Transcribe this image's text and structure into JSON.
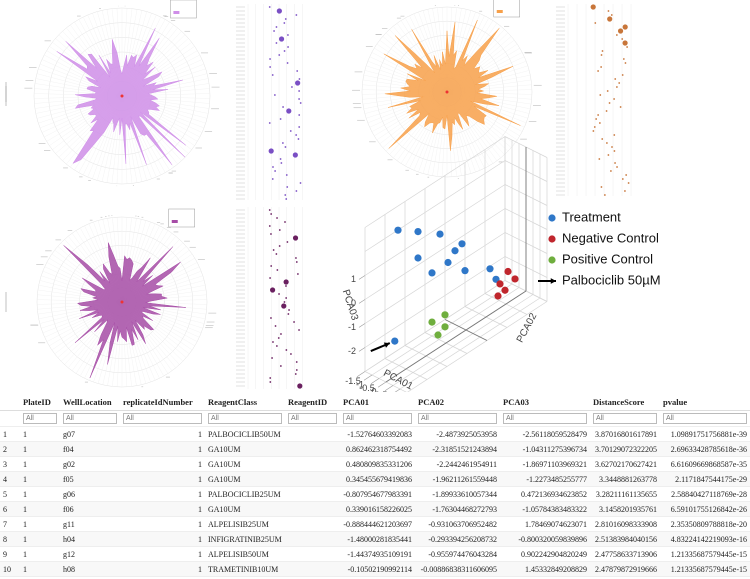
{
  "pca_chart": {
    "type": "scatter3d",
    "axis_labels": {
      "pca01": "PCA01",
      "pca02": "PCA02",
      "pca03": "PCA03"
    },
    "pca01_ticks": [
      -1.5,
      -1,
      -0.5,
      0,
      0.5,
      1,
      1.5
    ],
    "pca03_ticks": [
      -2,
      -1,
      0,
      1
    ],
    "series": [
      {
        "name": "Treatment",
        "color": "#2f77c8",
        "pca01": [
          -1.53,
          0,
          0,
          0,
          0,
          0,
          0,
          0,
          0,
          0,
          0,
          0
        ],
        "pca02": [
          -2.49,
          -3.4,
          -2.4,
          -1.3,
          -0.2,
          -0.55,
          -0.9,
          -2.4,
          -1.7,
          -0.05,
          1.2,
          1.5
        ],
        "pca03": [
          -2.56,
          3.0,
          2.4,
          1.7,
          0.7,
          0.6,
          0.3,
          1.3,
          0.3,
          -0.5,
          -1.1,
          -1.7
        ]
      },
      {
        "name": "Negative Control",
        "color": "#c0262d",
        "pca01": [
          0,
          0,
          0,
          0,
          0
        ],
        "pca02": [
          2.1,
          2.45,
          1.7,
          1.95,
          1.6
        ],
        "pca03": [
          -1.7,
          -2.2,
          -2.0,
          -2.4,
          -2.45
        ]
      },
      {
        "name": "Positive Control",
        "color": "#6fae3e",
        "pca01": [
          0,
          0,
          0,
          0
        ],
        "pca02": [
          -1.05,
          -1.7,
          -1.05,
          -1.4
        ],
        "pca03": [
          -1.8,
          -1.75,
          -2.3,
          -2.45
        ]
      }
    ],
    "annotation": {
      "text": "Palbociclib 50µM"
    }
  },
  "table": {
    "columns": [
      "PlateID",
      "WellLocation",
      "replicateIdNumber",
      "ReagentClass",
      "ReagentID",
      "PCA01",
      "PCA02",
      "PCA03",
      "DistanceScore",
      "pvalue"
    ],
    "filter_placeholder": "All",
    "row_labels": [
      "1",
      "2",
      "3",
      "4",
      "5",
      "6",
      "7",
      "8",
      "9",
      "10"
    ],
    "rows": [
      [
        "1",
        "g07",
        "1",
        "PALBOCICLIB50UM",
        "",
        "-1.52764603392083",
        "-2.4873925053958",
        "-2.56118059528479",
        "3.87016801617891",
        "1.09891751756881e-39"
      ],
      [
        "1",
        "f04",
        "1",
        "GA10UM",
        "",
        "0.862462318754492",
        "-2.31851521243894",
        "-1.04311275396734",
        "3.70129072322205",
        "2.69633428785618e-36"
      ],
      [
        "1",
        "g02",
        "1",
        "GA10UM",
        "",
        "0.480809835331206",
        "-2.2442461954911",
        "-1.86971103969321",
        "3.62702170627421",
        "6.61609669868587e-35"
      ],
      [
        "1",
        "f05",
        "1",
        "GA10UM",
        "",
        "0.345455679419836",
        "-1.96211261559448",
        "-1.2273485255777",
        "3.3448881263778",
        "2.1171847544175e-29"
      ],
      [
        "1",
        "g06",
        "1",
        "PALBOCICLIB25UM",
        "",
        "-0.807954677983391",
        "-1.89933610057344",
        "0.472136934623852",
        "3.28211161135655",
        "2.58840427118769e-28"
      ],
      [
        "1",
        "f06",
        "1",
        "GA10UM",
        "",
        "0.339016158226025",
        "-1.76304468272793",
        "-1.05784383483322",
        "3.1458201935761",
        "6.59101755126842e-26"
      ],
      [
        "1",
        "g11",
        "1",
        "ALPELISIB25UM",
        "",
        "-0.888444621203697",
        "-0.931063706952482",
        "1.78469074623071",
        "2.81016098333908",
        "2.35350809788818e-20"
      ],
      [
        "1",
        "h04",
        "1",
        "INFIGRATINIB25UM",
        "",
        "-1.48000281835441",
        "-0.293394256208732",
        "-0.800320059839896",
        "2.51383984040156",
        "4.83224142219093e-16"
      ],
      [
        "1",
        "g12",
        "1",
        "ALPELISIB50UM",
        "",
        "-1.44374935109191",
        "-0.955974476043284",
        "0.902242904820249",
        "2.47758633713906",
        "1.21335687579445e-15"
      ],
      [
        "1",
        "h08",
        "1",
        "TRAMETINIB10UM",
        "",
        "-0.10502190992114",
        "-0.00886838311606095",
        "1.45332849208829",
        "2.47879872919666",
        "1.21335687579445e-15"
      ]
    ]
  }
}
